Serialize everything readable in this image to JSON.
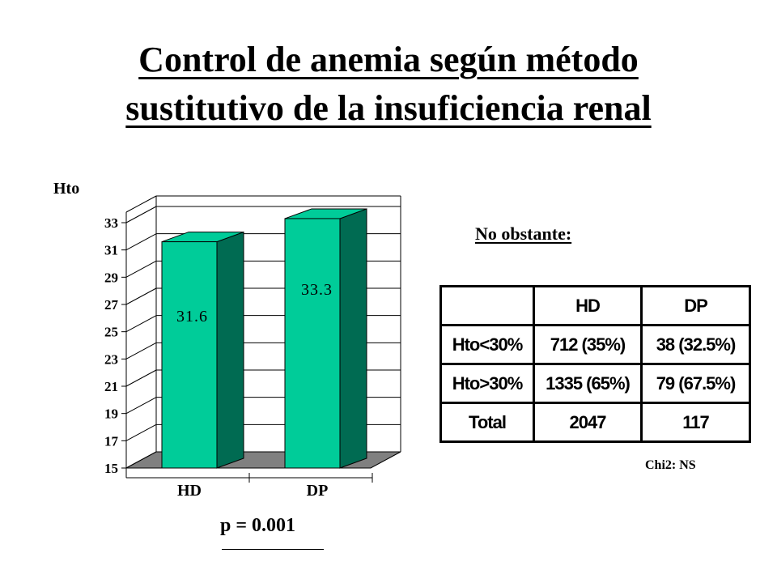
{
  "title_line1": "Control de anemia según método",
  "title_line2": "sustitutivo de la insuficiencia renal",
  "note": "No obstante:",
  "p_value": "p = 0.001",
  "chi_note": "Chi2: NS",
  "chart_data": {
    "type": "bar",
    "ylabel": "Hto",
    "xlabel": "",
    "categories": [
      "HD",
      "DP"
    ],
    "values": [
      31.6,
      33.3
    ],
    "value_labels": [
      "31.6",
      "33.3"
    ],
    "yticks": [
      "15",
      "17",
      "19",
      "21",
      "23",
      "25",
      "27",
      "29",
      "31",
      "33"
    ],
    "ylim": [
      15,
      34
    ],
    "grid": true,
    "three_d": true,
    "colors": {
      "bar_front": "#00CC99",
      "bar_side": "#006B52",
      "floor": "#808080"
    }
  },
  "table": {
    "header": [
      "",
      "HD",
      "DP"
    ],
    "rows": [
      [
        "Hto<30%",
        "712 (35%)",
        "38  (32.5%)"
      ],
      [
        "Hto>30%",
        "1335  (65%)",
        "79  (67.5%)"
      ],
      [
        "Total",
        "2047",
        "117"
      ]
    ]
  }
}
